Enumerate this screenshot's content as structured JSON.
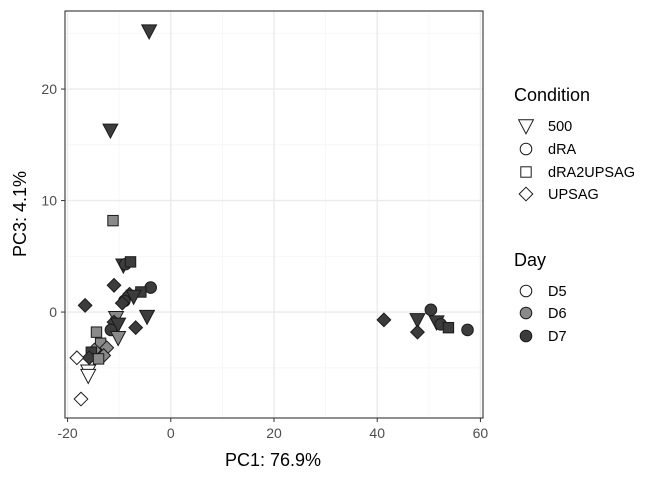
{
  "chart_data": {
    "type": "scatter",
    "title": "",
    "xlabel": "PC1: 76.9%",
    "ylabel": "PC3: 4.1%",
    "xlim": [
      -20.5,
      60.5
    ],
    "ylim": [
      -9.5,
      27
    ],
    "x_ticks": [
      -20,
      0,
      20,
      40,
      60
    ],
    "y_ticks": [
      0,
      10,
      20
    ],
    "x_tick_labels": [
      "-20",
      "0",
      "20",
      "40",
      "60"
    ],
    "y_tick_labels": [
      "0",
      "10",
      "20"
    ],
    "grid": true,
    "legend_position": "right",
    "colors": {
      "D5": "#ffffff",
      "D6": "#8a8a8a",
      "D7": "#3c3c3c",
      "stroke": "#1a1a1a",
      "panel_border": "#333333",
      "grid_major": "#ebebeb",
      "grid_minor": "#f5f5f5"
    },
    "legends": [
      {
        "title": "Condition",
        "entries": [
          {
            "label": "500",
            "shape": "triangle-down"
          },
          {
            "label": "dRA",
            "shape": "circle"
          },
          {
            "label": "dRA2UPSAG",
            "shape": "square"
          },
          {
            "label": "UPSAG",
            "shape": "diamond"
          }
        ]
      },
      {
        "title": "Day",
        "entries": [
          {
            "label": "D5",
            "fill": "#ffffff"
          },
          {
            "label": "D6",
            "fill": "#8a8a8a"
          },
          {
            "label": "D7",
            "fill": "#3c3c3c"
          }
        ]
      }
    ],
    "points": [
      {
        "x": -4.2,
        "y": 25.2,
        "condition": "500",
        "day": "D7"
      },
      {
        "x": -11.7,
        "y": 16.3,
        "condition": "500",
        "day": "D7"
      },
      {
        "x": -11.2,
        "y": 8.2,
        "condition": "dRA2UPSAG",
        "day": "D6"
      },
      {
        "x": -9.2,
        "y": 4.2,
        "condition": "500",
        "day": "D7"
      },
      {
        "x": -8.8,
        "y": 4.3,
        "condition": "dRA",
        "day": "D7"
      },
      {
        "x": -7.8,
        "y": 4.5,
        "condition": "dRA2UPSAG",
        "day": "D7"
      },
      {
        "x": -11.0,
        "y": 2.4,
        "condition": "UPSAG",
        "day": "D7"
      },
      {
        "x": -3.9,
        "y": 2.2,
        "condition": "dRA",
        "day": "D7"
      },
      {
        "x": -5.8,
        "y": 1.8,
        "condition": "dRA2UPSAG",
        "day": "D7"
      },
      {
        "x": -8.0,
        "y": 1.6,
        "condition": "UPSAG",
        "day": "D7"
      },
      {
        "x": -7.2,
        "y": 1.4,
        "condition": "500",
        "day": "D7"
      },
      {
        "x": -9.0,
        "y": 1.0,
        "condition": "dRA",
        "day": "D7"
      },
      {
        "x": -9.4,
        "y": 0.8,
        "condition": "UPSAG",
        "day": "D7"
      },
      {
        "x": -16.6,
        "y": 0.6,
        "condition": "UPSAG",
        "day": "D7"
      },
      {
        "x": -4.6,
        "y": -0.4,
        "condition": "500",
        "day": "D7"
      },
      {
        "x": -10.6,
        "y": -0.5,
        "condition": "500",
        "day": "D6"
      },
      {
        "x": -11.0,
        "y": -0.9,
        "condition": "UPSAG",
        "day": "D7"
      },
      {
        "x": -10.2,
        "y": -1.1,
        "condition": "500",
        "day": "D7"
      },
      {
        "x": -6.8,
        "y": -1.4,
        "condition": "UPSAG",
        "day": "D7"
      },
      {
        "x": -14.4,
        "y": -1.8,
        "condition": "dRA2UPSAG",
        "day": "D6"
      },
      {
        "x": -11.6,
        "y": -1.6,
        "condition": "dRA",
        "day": "D7"
      },
      {
        "x": -10.2,
        "y": -2.3,
        "condition": "500",
        "day": "D6"
      },
      {
        "x": -13.6,
        "y": -2.8,
        "condition": "dRA2UPSAG",
        "day": "D6"
      },
      {
        "x": -12.4,
        "y": -3.2,
        "condition": "UPSAG",
        "day": "D6"
      },
      {
        "x": -14.8,
        "y": -3.4,
        "condition": "UPSAG",
        "day": "D6"
      },
      {
        "x": -15.4,
        "y": -3.6,
        "condition": "dRA2UPSAG",
        "day": "D7"
      },
      {
        "x": -13.0,
        "y": -3.9,
        "condition": "UPSAG",
        "day": "D6"
      },
      {
        "x": -15.8,
        "y": -4.1,
        "condition": "UPSAG",
        "day": "D7"
      },
      {
        "x": -14.0,
        "y": -4.2,
        "condition": "dRA2UPSAG",
        "day": "D6"
      },
      {
        "x": -18.2,
        "y": -4.1,
        "condition": "UPSAG",
        "day": "D5"
      },
      {
        "x": -16.0,
        "y": -5.3,
        "condition": "500",
        "day": "D5"
      },
      {
        "x": -16.0,
        "y": -5.7,
        "condition": "500",
        "day": "D5"
      },
      {
        "x": -17.4,
        "y": -7.8,
        "condition": "UPSAG",
        "day": "D5"
      },
      {
        "x": 41.3,
        "y": -0.7,
        "condition": "UPSAG",
        "day": "D7"
      },
      {
        "x": 47.8,
        "y": -0.7,
        "condition": "500",
        "day": "D7"
      },
      {
        "x": 50.4,
        "y": 0.2,
        "condition": "dRA",
        "day": "D7"
      },
      {
        "x": 51.5,
        "y": -0.9,
        "condition": "500",
        "day": "D7"
      },
      {
        "x": 52.3,
        "y": -1.1,
        "condition": "dRA",
        "day": "D7"
      },
      {
        "x": 53.8,
        "y": -1.4,
        "condition": "dRA2UPSAG",
        "day": "D7"
      },
      {
        "x": 57.5,
        "y": -1.6,
        "condition": "dRA",
        "day": "D7"
      },
      {
        "x": 47.8,
        "y": -1.8,
        "condition": "UPSAG",
        "day": "D7"
      }
    ]
  }
}
